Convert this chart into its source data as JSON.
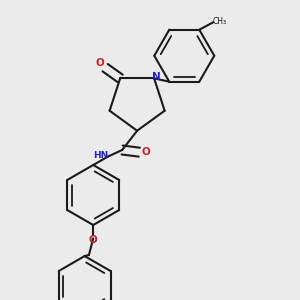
{
  "bg_color": "#ebebeb",
  "bond_color": "#1a1a1a",
  "n_color": "#2020cc",
  "o_color": "#cc2020",
  "lw": 1.5,
  "lw_dbl_inner": 1.3,
  "r_hex": 0.28,
  "r_pent": 0.27,
  "figsize": [
    3.0,
    3.0
  ],
  "dpi": 100,
  "xlim": [
    0.2,
    2.8
  ],
  "ylim": [
    0.1,
    2.9
  ]
}
